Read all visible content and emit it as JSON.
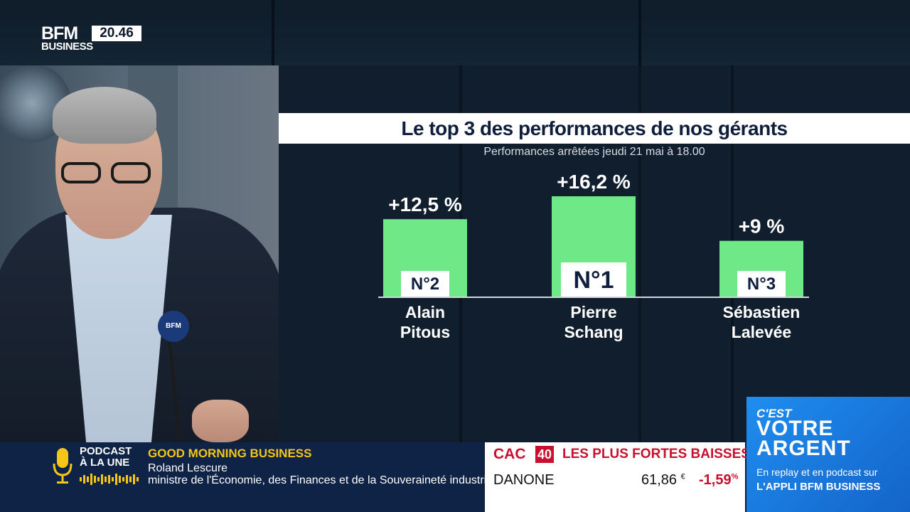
{
  "channel": {
    "logo_line1": "BFM",
    "logo_line2": "BUSINESS",
    "time": "20.46"
  },
  "graphic": {
    "title": "Le top 3 des performances de nos gérants",
    "subtitle": "Performances arrêtées jeudi 21 mai à 18.00"
  },
  "chart_data": {
    "type": "bar",
    "title": "Le top 3 des performances de nos gérants",
    "subtitle": "Performances arrêtées jeudi 21 mai à 18.00",
    "categories": [
      "Alain Pitous",
      "Pierre Schang",
      "Sébastien Lalevée"
    ],
    "name_lines": [
      [
        "Alain",
        "Pitous"
      ],
      [
        "Pierre",
        "Schang"
      ],
      [
        "Sébastien",
        "Lalevée"
      ]
    ],
    "values": [
      12.5,
      16.2,
      9
    ],
    "value_labels": [
      "+12,5 %",
      "+16,2 %",
      "+9 %"
    ],
    "rank_labels": [
      "N°2",
      "N°1",
      "N°3"
    ],
    "bar_color": "#6fe887",
    "ylim": [
      0,
      16.2
    ],
    "xlabel": "",
    "ylabel": ""
  },
  "podcast": {
    "label_line1": "PODCAST",
    "label_line2": "À LA UNE"
  },
  "show": {
    "name": "GOOD MORNING BUSINESS",
    "guest": "Roland Lescure",
    "guest_role": "ministre de l'Économie, des Finances et de la Souveraineté industrielle"
  },
  "market": {
    "index": "CAC",
    "index_number": "40",
    "heading": "LES PLUS FORTES BAISSES",
    "stock": "DANONE",
    "price": "61,86",
    "currency": "€",
    "change": "-1,59",
    "percent": "%"
  },
  "promo": {
    "line1": "C'EST",
    "line2": "VOTRE",
    "line3": "ARGENT",
    "line4": "En replay et en podcast sur",
    "line5": "L'APPLI BFM BUSINESS"
  },
  "colors": {
    "accent_green": "#6fe887",
    "accent_red": "#c8102e",
    "brand_blue": "#1f8df0",
    "ticker_navy": "#0f2347"
  },
  "mic_badge": "BFM"
}
